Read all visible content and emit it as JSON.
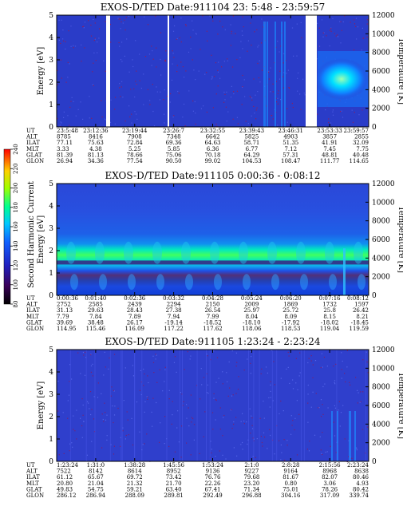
{
  "chart_data": [
    {
      "type": "heatmap",
      "title": "EXOS-D/TED   Date:911104  23: 5:48 - 23:59:57",
      "ylabel": "Energy [eV]",
      "y2label": "Temperature [K]",
      "ylim": [
        0,
        5
      ],
      "y2lim": [
        0,
        12000
      ],
      "yticks": [
        "0",
        "1",
        "2",
        "3",
        "4",
        "5"
      ],
      "y2ticks": [
        "0",
        "2000",
        "4000",
        "6000",
        "8000",
        "10000",
        "12000"
      ],
      "data_gaps_ut": [
        "23:12:36",
        "23:26:07",
        "23:49:31"
      ],
      "table": {
        "row_labels": [
          "UT",
          "ALT",
          "ILAT",
          "MLT",
          "GLAT",
          "GLON"
        ],
        "columns": [
          [
            "23:5:48",
            "8785",
            "77.11",
            "3.33",
            "81.39",
            "26.94"
          ],
          [
            "23:12:36",
            "8416",
            "75.63",
            "4.38",
            "81.13",
            "34.36"
          ],
          [
            "23:19:44",
            "7908",
            "72.84",
            "5.25",
            "78.66",
            "77.54"
          ],
          [
            "23:26:7",
            "7348",
            "69.36",
            "5.85",
            "75.06",
            "90.50"
          ],
          [
            "23:32:55",
            "6642",
            "64.63",
            "6.36",
            "70.18",
            "99.02"
          ],
          [
            "23:39:43",
            "5825",
            "58.71",
            "6.77",
            "64.29",
            "104.53"
          ],
          [
            "23:46:31",
            "4903",
            "51.35",
            "7.12",
            "57.31",
            "108.47"
          ],
          [
            "23:53:33",
            "3857",
            "41.91",
            "7.45",
            "48.81",
            "111.77"
          ],
          [
            "23:59:57",
            "2855",
            "32.09",
            "7.75",
            "40.48",
            "114.65"
          ]
        ]
      }
    },
    {
      "type": "heatmap",
      "title": "EXOS-D/TED   Date:911105  0:00:36 - 0:08:12",
      "ylabel": "Energy [eV]",
      "y2label": "Temperature [K]",
      "ylim": [
        0,
        5
      ],
      "y2lim": [
        0,
        12000
      ],
      "yticks": [
        "0",
        "1",
        "2",
        "3",
        "4",
        "5"
      ],
      "y2ticks": [
        "0",
        "2000",
        "4000",
        "6000",
        "8000",
        "10000",
        "12000"
      ],
      "colorbar": {
        "label": "Second Harmonic Current",
        "range": [
          80,
          240
        ],
        "ticks": [
          "80",
          "100",
          "120",
          "140",
          "160",
          "180",
          "200",
          "220",
          "240"
        ]
      },
      "table": {
        "row_labels": [
          "UT",
          "ALT",
          "ILAT",
          "MLT",
          "GLAT",
          "GLON"
        ],
        "columns": [
          [
            "0:00:36",
            "2752",
            "31.13",
            "7.79",
            "39.69",
            "114.95"
          ],
          [
            "0:01:40",
            "2585",
            "29.63",
            "7.84",
            "38.48",
            "115.46"
          ],
          [
            "0:02:36",
            "2439",
            "28.43",
            "7.89",
            "26.17",
            "116.09"
          ],
          [
            "0:03:32",
            "2294",
            "27.38",
            "7.94",
            "-19.14",
            "117.22"
          ],
          [
            "0:04:28",
            "2150",
            "26.54",
            "7.99",
            "-18.52",
            "117.62"
          ],
          [
            "0:05:24",
            "2009",
            "25.97",
            "8.04",
            "-18.10",
            "118.06"
          ],
          [
            "0:06:20",
            "1869",
            "25.72",
            "8.09",
            "-17.92",
            "118.53"
          ],
          [
            "0:07:16",
            "1732",
            "25.8",
            "8.15",
            "-18.02",
            "119.04"
          ],
          [
            "0:08:12",
            "1597",
            "26.42",
            "8.21",
            "-18.45",
            "119.59"
          ]
        ]
      }
    },
    {
      "type": "heatmap",
      "title": "EXOS-D/TED   Date:911105  1:23:24 - 2:23:24",
      "ylabel": "Energy [eV]",
      "y2label": "Temperature [K]",
      "ylim": [
        0,
        5
      ],
      "y2lim": [
        0,
        12000
      ],
      "yticks": [
        "0",
        "1",
        "2",
        "3",
        "4",
        "5"
      ],
      "y2ticks": [
        "0",
        "2000",
        "4000",
        "6000",
        "8000",
        "10000",
        "12000"
      ],
      "table": {
        "row_labels": [
          "UT",
          "ALT",
          "ILAT",
          "MLT",
          "GLAT",
          "GLON"
        ],
        "columns": [
          [
            "1:23:24",
            "7522",
            "61.12",
            "20.80",
            "49.83",
            "286.12"
          ],
          [
            "1:31:0",
            "8142",
            "65.67",
            "21.04",
            "54.75",
            "286.94"
          ],
          [
            "1:38:28",
            "8614",
            "69.72",
            "21.32",
            "59.21",
            "288.09"
          ],
          [
            "1:45:56",
            "8952",
            "73.42",
            "21.70",
            "63.40",
            "289.81"
          ],
          [
            "1:53:24",
            "9136",
            "76.76",
            "22.26",
            "67.41",
            "292.49"
          ],
          [
            "2:1:0",
            "9227",
            "79.68",
            "23.20",
            "71.34",
            "296.88"
          ],
          [
            "2:8:28",
            "9164",
            "81.67",
            "0.80",
            "75.01",
            "304.16"
          ],
          [
            "2:15:56",
            "8968",
            "82.07",
            "3.06",
            "78.26",
            "317.09"
          ],
          [
            "2:23:24",
            "8638",
            "80.46",
            "4.93",
            "80.42",
            "339.74"
          ]
        ]
      }
    }
  ]
}
